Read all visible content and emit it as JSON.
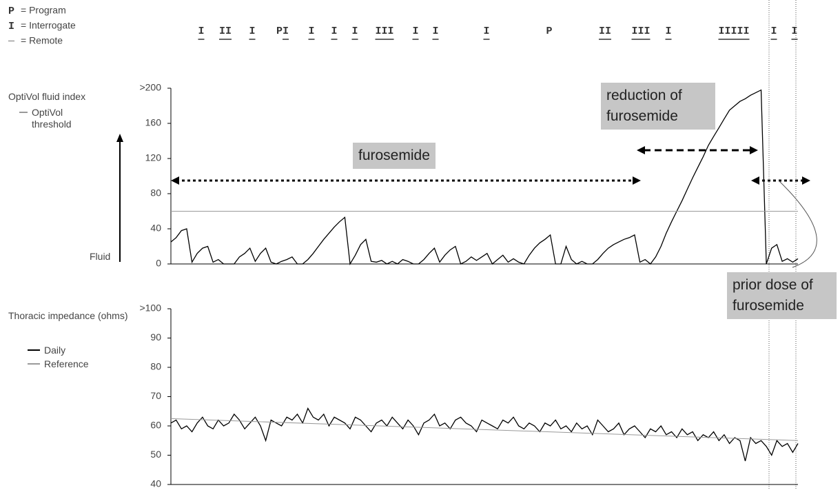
{
  "legend": [
    {
      "symbol": "P",
      "label": "= Program"
    },
    {
      "symbol": "I",
      "label": "= Interrogate"
    },
    {
      "symbol": "_",
      "label": "= Remote"
    }
  ],
  "events": [
    "I",
    "II",
    "I",
    "PI",
    "I",
    "I",
    "I",
    "III",
    "I",
    "I",
    "I",
    "P",
    "II",
    "III",
    "I",
    "IIIII",
    "I",
    "I"
  ],
  "chart_data": [
    {
      "type": "line",
      "y_label": "OptiVol fluid index",
      "fluid_label": "Fluid",
      "annotations": [
        "furosemide",
        "reduction of furosemide",
        "prior dose of furosemide"
      ],
      "ylim": [
        0,
        200
      ],
      "yticks": [
        0,
        40,
        80,
        120,
        160,
        {
          "value": 200,
          "label": ">200"
        }
      ],
      "series": [
        {
          "name": "OptiVol fluid index",
          "color": "#000000",
          "values": [
            25,
            30,
            38,
            40,
            2,
            12,
            18,
            20,
            2,
            5,
            0,
            0,
            0,
            8,
            12,
            18,
            3,
            12,
            18,
            2,
            0,
            3,
            5,
            8,
            0,
            0,
            5,
            12,
            20,
            28,
            35,
            42,
            48,
            53,
            0,
            10,
            22,
            28,
            3,
            2,
            4,
            0,
            3,
            0,
            5,
            3,
            0,
            0,
            5,
            12,
            18,
            2,
            10,
            16,
            20,
            0,
            3,
            8,
            4,
            8,
            12,
            0,
            5,
            10,
            2,
            6,
            2,
            0,
            10,
            18,
            24,
            28,
            33,
            0,
            0,
            20,
            5,
            0,
            3,
            0,
            0,
            5,
            12,
            18,
            22,
            25,
            28,
            30,
            33,
            2,
            5,
            0,
            8,
            20,
            35,
            48,
            60,
            72,
            85,
            98,
            110,
            122,
            135,
            145,
            155,
            165,
            175,
            180,
            185,
            188,
            192,
            195,
            198,
            0,
            18,
            22,
            3,
            6,
            2,
            6
          ]
        },
        {
          "name": "OptiVol threshold",
          "color": "#999999",
          "values": [
            60,
            60
          ]
        }
      ]
    },
    {
      "type": "line",
      "y_label": "Thoracic impedance (ohms)",
      "ylim": [
        40,
        100
      ],
      "yticks": [
        40,
        50,
        60,
        70,
        80,
        90,
        {
          "value": 100,
          "label": ">100"
        }
      ],
      "series": [
        {
          "name": "Daily",
          "color": "#000000",
          "values": [
            61,
            62,
            59,
            60,
            58,
            61,
            63,
            60,
            59,
            62,
            60,
            61,
            64,
            62,
            59,
            61,
            63,
            60,
            55,
            62,
            61,
            60,
            63,
            62,
            64,
            61,
            66,
            63,
            62,
            64,
            60,
            63,
            62,
            61,
            59,
            63,
            62,
            60,
            58,
            61,
            62,
            60,
            63,
            61,
            59,
            62,
            60,
            57,
            61,
            62,
            64,
            60,
            61,
            59,
            62,
            63,
            61,
            60,
            58,
            62,
            61,
            60,
            59,
            62,
            61,
            63,
            60,
            59,
            61,
            60,
            58,
            61,
            60,
            62,
            59,
            60,
            58,
            61,
            59,
            60,
            57,
            62,
            60,
            58,
            59,
            61,
            57,
            59,
            60,
            58,
            56,
            59,
            58,
            60,
            57,
            58,
            56,
            59,
            57,
            58,
            55,
            57,
            56,
            58,
            55,
            57,
            54,
            56,
            55,
            48,
            56,
            54,
            55,
            53,
            50,
            55,
            53,
            54,
            51,
            54
          ]
        },
        {
          "name": "Reference",
          "color": "#999999",
          "values": [
            62.5,
            55
          ]
        }
      ]
    }
  ]
}
